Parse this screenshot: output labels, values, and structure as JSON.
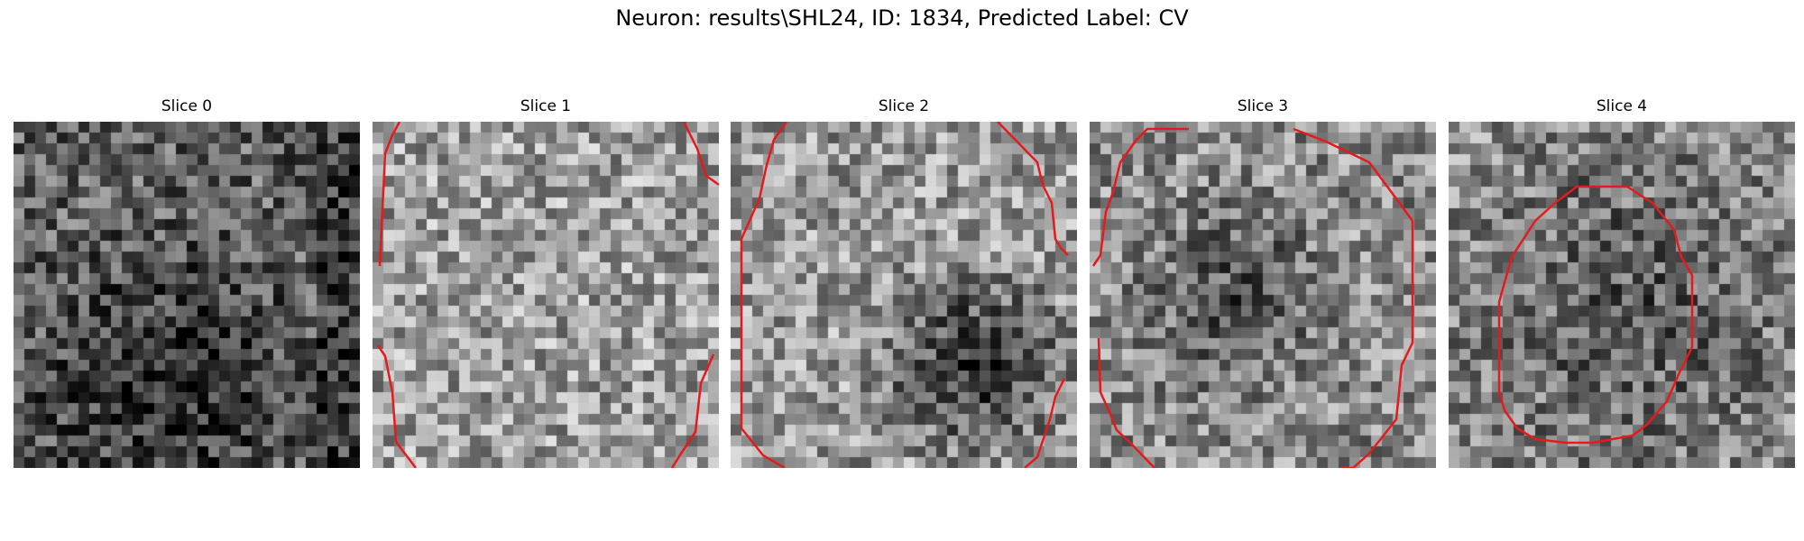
{
  "figure": {
    "title": "Neuron: results\\SHL24, ID: 1834, Predicted Label: CV"
  },
  "panels": [
    {
      "title": "Slice 0",
      "seed": 11,
      "base": 0.38,
      "contour": "none"
    },
    {
      "title": "Slice 1",
      "seed": 23,
      "base": 0.62,
      "contour": "large-clipped"
    },
    {
      "title": "Slice 2",
      "seed": 37,
      "base": 0.6,
      "contour": "large-clipped-2"
    },
    {
      "title": "Slice 3",
      "seed": 51,
      "base": 0.55,
      "contour": "medium"
    },
    {
      "title": "Slice 4",
      "seed": 73,
      "base": 0.55,
      "contour": "small"
    }
  ],
  "colors": {
    "contour": "#e41a1c"
  }
}
